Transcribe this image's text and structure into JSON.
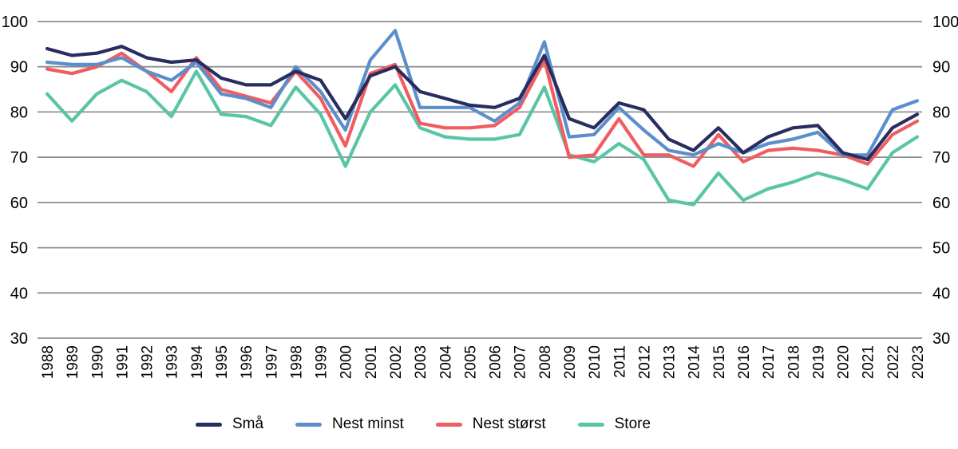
{
  "chart_data": {
    "type": "line",
    "title": "",
    "xlabel": "",
    "ylabel": "",
    "x": [
      "1988",
      "1989",
      "1990",
      "1991",
      "1992",
      "1993",
      "1994",
      "1995",
      "1996",
      "1997",
      "1998",
      "1999",
      "2000",
      "2001",
      "2002",
      "2003",
      "2004",
      "2005",
      "2006",
      "2007",
      "2008",
      "2009",
      "2010",
      "2011",
      "2012",
      "2013",
      "2014",
      "2015",
      "2016",
      "2017",
      "2018",
      "2019",
      "2020",
      "2021",
      "2022",
      "2023"
    ],
    "ylim": [
      30,
      100
    ],
    "yticks": [
      100,
      90,
      80,
      70,
      60,
      50,
      40,
      30
    ],
    "grid": true,
    "grid_color": "#8f8f8f",
    "axis_label_color": "#000000",
    "legend_position": "bottom",
    "series": [
      {
        "name": "Små",
        "slug": "sma",
        "color": "#282c5f",
        "values": [
          94,
          92.5,
          93,
          94.5,
          92,
          91,
          91.5,
          87.5,
          86,
          86,
          89,
          87,
          78.5,
          88,
          90,
          84.5,
          83,
          81.5,
          81,
          83,
          92.5,
          78.5,
          76.5,
          82,
          80.5,
          74,
          71.5,
          76.5,
          71,
          74.5,
          76.5,
          77,
          71,
          69.5,
          76.5,
          79.5
        ]
      },
      {
        "name": "Nest minst",
        "slug": "nest-minst",
        "color": "#5b8fcb",
        "values": [
          91,
          90.5,
          90.5,
          92,
          89,
          87,
          91,
          84,
          83,
          81,
          90,
          84.5,
          76,
          91.5,
          98,
          81,
          81,
          81,
          78,
          82,
          95.5,
          74.5,
          75,
          81,
          76,
          71.5,
          70.5,
          73,
          71,
          73,
          74,
          75.5,
          70.5,
          70.5,
          80.5,
          82.5
        ]
      },
      {
        "name": "Nest størst",
        "slug": "nest-storst",
        "color": "#f05c5f",
        "values": [
          89.5,
          88.5,
          90,
          93,
          89,
          84.5,
          92,
          85,
          83.5,
          82,
          89,
          83,
          72.5,
          88.5,
          90.5,
          77.5,
          76.5,
          76.5,
          77,
          81,
          91.5,
          70,
          70.5,
          78.5,
          70.5,
          70.5,
          68,
          75,
          69,
          71.5,
          72,
          71.5,
          70.5,
          68.5,
          75,
          78
        ]
      },
      {
        "name": "Store",
        "slug": "store",
        "color": "#5ac5a5",
        "values": [
          84,
          78,
          84,
          87,
          84.5,
          79,
          89,
          79.5,
          79,
          77,
          85.5,
          79.5,
          68,
          80,
          86,
          76.5,
          74.5,
          74,
          74,
          75,
          85.5,
          70.5,
          69,
          73,
          69.5,
          60.5,
          59.5,
          66.5,
          60.5,
          63,
          64.5,
          66.5,
          65,
          63,
          71,
          74.5
        ]
      }
    ]
  }
}
